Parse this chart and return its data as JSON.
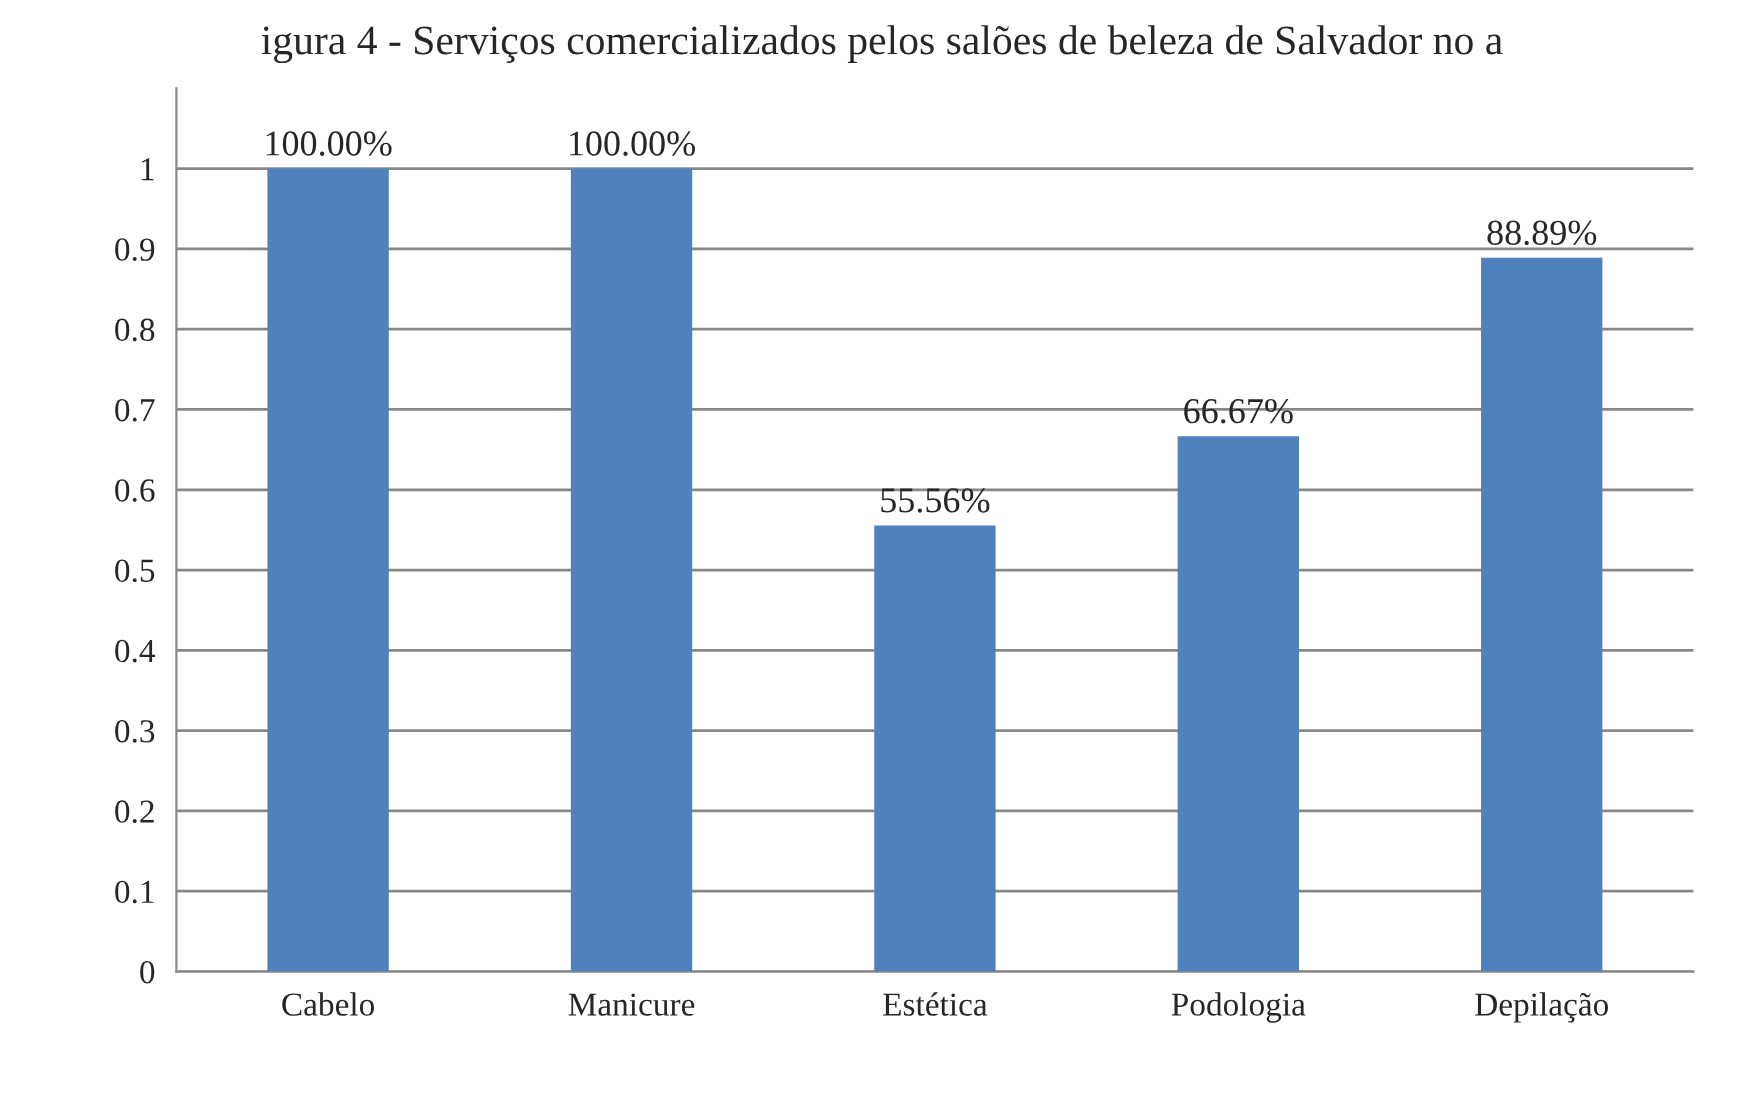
{
  "chart_data": {
    "type": "bar",
    "title": "igura 4 - Serviços comercializados pelos salões de beleza de Salvador no a",
    "categories": [
      "Cabelo",
      "Manicure",
      "Estética",
      "Podologia",
      "Depilação"
    ],
    "values": [
      1,
      1,
      0.5556,
      0.6667,
      0.8889
    ],
    "value_labels": [
      "100.00%",
      "100.00%",
      "55.56%",
      "66.67%",
      "88.89%"
    ],
    "color": "#4f81bd",
    "ylim": [
      0,
      1.1
    ],
    "yticks": [
      0,
      0.1,
      0.2,
      0.3,
      0.4,
      0.5,
      0.6,
      0.7,
      0.8,
      0.9,
      1
    ],
    "grid": "y"
  }
}
